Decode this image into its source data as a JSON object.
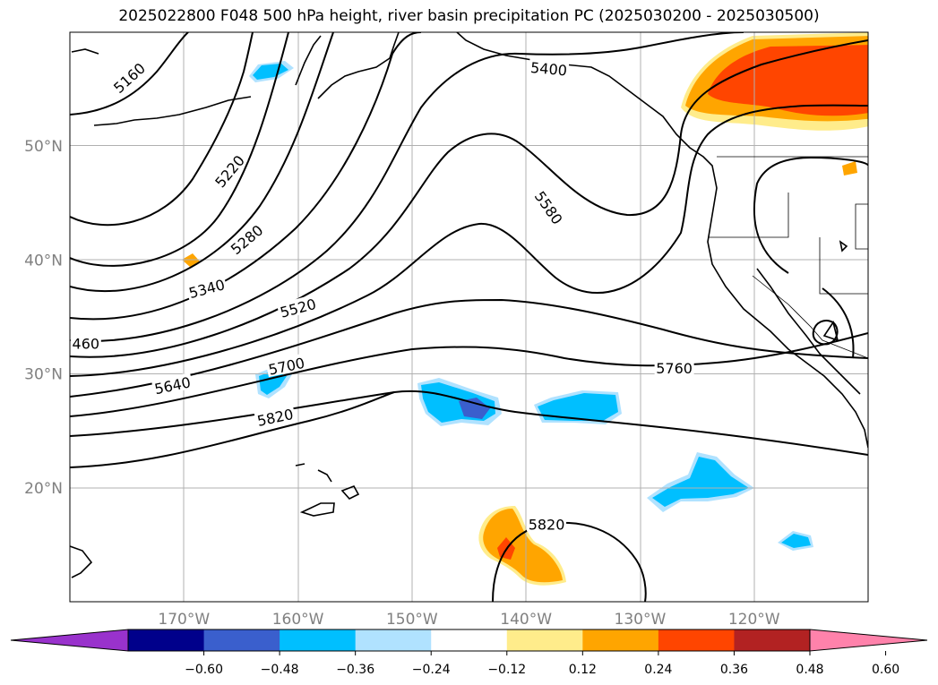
{
  "title": "2025022800 F048 500 hPa height, river basin precipitation PC (2025030200 - 2025030500)",
  "map": {
    "lon_range": [
      -180,
      -110
    ],
    "lat_range": [
      10,
      60
    ],
    "lat_labels": [
      {
        "lat": 50,
        "text": "50°N"
      },
      {
        "lat": 40,
        "text": "40°N"
      },
      {
        "lat": 30,
        "text": "30°N"
      },
      {
        "lat": 20,
        "text": "20°N"
      }
    ],
    "lon_labels": [
      {
        "lon": -170,
        "text": "170°W"
      },
      {
        "lon": -160,
        "text": "160°W"
      },
      {
        "lon": -150,
        "text": "150°W"
      },
      {
        "lon": -140,
        "text": "140°W"
      },
      {
        "lon": -130,
        "text": "130°W"
      },
      {
        "lon": -120,
        "text": "120°W"
      }
    ],
    "contour_labels": [
      {
        "text": "5160",
        "lon": -174.8,
        "lat": 56.0,
        "angle": -42
      },
      {
        "text": "5220",
        "lon": -166.0,
        "lat": 47.8,
        "angle": -50
      },
      {
        "text": "5280",
        "lon": -164.5,
        "lat": 41.8,
        "angle": -40
      },
      {
        "text": "5340",
        "lon": -168.0,
        "lat": 37.5,
        "angle": -15
      },
      {
        "text": "5400",
        "lon": -138.0,
        "lat": 56.8,
        "angle": 5
      },
      {
        "text": "460",
        "lon": -178.6,
        "lat": 32.7,
        "angle": 0
      },
      {
        "text": "5520",
        "lon": -160.0,
        "lat": 35.8,
        "angle": -15
      },
      {
        "text": "5580",
        "lon": -138.0,
        "lat": 44.6,
        "angle": 55
      },
      {
        "text": "5640",
        "lon": -171.0,
        "lat": 29.0,
        "angle": -12
      },
      {
        "text": "5700",
        "lon": -161.0,
        "lat": 30.7,
        "angle": -12
      },
      {
        "text": "5760",
        "lon": -127.0,
        "lat": 30.5,
        "angle": 0
      },
      {
        "text": "5820",
        "lon": -162.0,
        "lat": 26.2,
        "angle": -12
      },
      {
        "text": "5820",
        "lon": -138.2,
        "lat": 16.8,
        "angle": 0
      }
    ]
  },
  "colorbar": {
    "ticks": [
      "−0.60",
      "−0.48",
      "−0.36",
      "−0.24",
      "−0.12",
      "0.12",
      "0.24",
      "0.36",
      "0.48",
      "0.60"
    ],
    "colors": [
      "#9932cc",
      "#00008b",
      "#3a5fcd",
      "#00bfff",
      "#b0e2ff",
      "#ffffff",
      "#ffec8b",
      "#ffa500",
      "#ff4500",
      "#b22222",
      "#ff82ab"
    ]
  }
}
